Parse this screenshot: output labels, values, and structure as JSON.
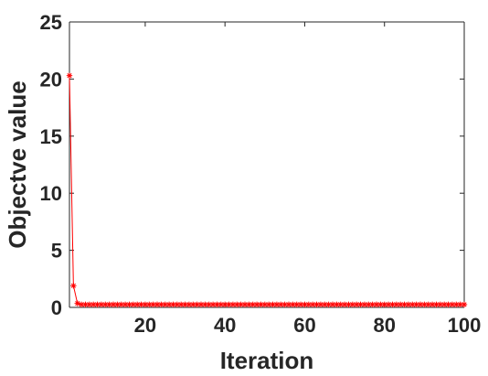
{
  "chart_data": {
    "type": "line",
    "title": "",
    "xlabel": "Iteration",
    "ylabel": "Objectve value",
    "xlim": [
      1,
      100
    ],
    "ylim": [
      0,
      25
    ],
    "x_ticks": [
      20,
      40,
      60,
      80,
      100
    ],
    "y_ticks": [
      0,
      5,
      10,
      15,
      20,
      25
    ],
    "grid": false,
    "legend": "none",
    "series": [
      {
        "color": "#ff0000",
        "marker": "asterisk",
        "x": [
          1,
          2,
          3,
          4,
          5,
          6,
          7,
          8,
          9,
          10,
          11,
          12,
          13,
          14,
          15,
          16,
          17,
          18,
          19,
          20,
          21,
          22,
          23,
          24,
          25,
          26,
          27,
          28,
          29,
          30,
          31,
          32,
          33,
          34,
          35,
          36,
          37,
          38,
          39,
          40,
          41,
          42,
          43,
          44,
          45,
          46,
          47,
          48,
          49,
          50,
          51,
          52,
          53,
          54,
          55,
          56,
          57,
          58,
          59,
          60,
          61,
          62,
          63,
          64,
          65,
          66,
          67,
          68,
          69,
          70,
          71,
          72,
          73,
          74,
          75,
          76,
          77,
          78,
          79,
          80,
          81,
          82,
          83,
          84,
          85,
          86,
          87,
          88,
          89,
          90,
          91,
          92,
          93,
          94,
          95,
          96,
          97,
          98,
          99,
          100
        ],
        "y": [
          20.3,
          1.9,
          0.35,
          0.25,
          0.25,
          0.25,
          0.25,
          0.25,
          0.25,
          0.25,
          0.25,
          0.25,
          0.25,
          0.25,
          0.25,
          0.25,
          0.25,
          0.25,
          0.25,
          0.25,
          0.25,
          0.25,
          0.25,
          0.25,
          0.25,
          0.25,
          0.25,
          0.25,
          0.25,
          0.25,
          0.25,
          0.25,
          0.25,
          0.25,
          0.25,
          0.25,
          0.25,
          0.25,
          0.25,
          0.25,
          0.25,
          0.25,
          0.25,
          0.25,
          0.25,
          0.25,
          0.25,
          0.25,
          0.25,
          0.25,
          0.25,
          0.25,
          0.25,
          0.25,
          0.25,
          0.25,
          0.25,
          0.25,
          0.25,
          0.25,
          0.25,
          0.25,
          0.25,
          0.25,
          0.25,
          0.25,
          0.25,
          0.25,
          0.25,
          0.25,
          0.25,
          0.25,
          0.25,
          0.25,
          0.25,
          0.25,
          0.25,
          0.25,
          0.25,
          0.25,
          0.25,
          0.25,
          0.25,
          0.25,
          0.25,
          0.25,
          0.25,
          0.25,
          0.25,
          0.25,
          0.25,
          0.25,
          0.25,
          0.25,
          0.25,
          0.25,
          0.25,
          0.25,
          0.25,
          0.25
        ]
      }
    ]
  }
}
